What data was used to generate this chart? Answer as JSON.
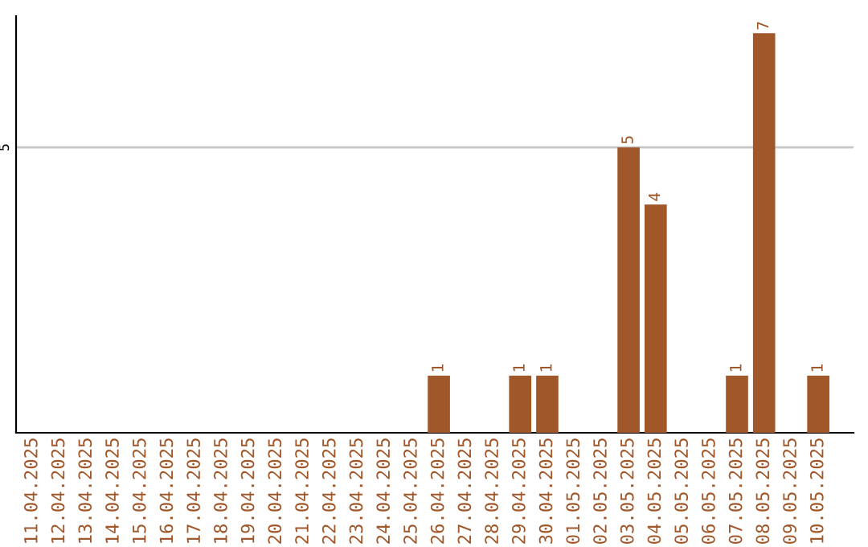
{
  "chart_data": {
    "type": "bar",
    "categories": [
      "11.04.2025",
      "12.04.2025",
      "13.04.2025",
      "14.04.2025",
      "15.04.2025",
      "16.04.2025",
      "17.04.2025",
      "18.04.2025",
      "19.04.2025",
      "20.04.2025",
      "21.04.2025",
      "22.04.2025",
      "23.04.2025",
      "24.04.2025",
      "25.04.2025",
      "26.04.2025",
      "27.04.2025",
      "28.04.2025",
      "29.04.2025",
      "30.04.2025",
      "01.05.2025",
      "02.05.2025",
      "03.05.2025",
      "04.05.2025",
      "05.05.2025",
      "06.05.2025",
      "07.05.2025",
      "08.05.2025",
      "09.05.2025",
      "10.05.2025"
    ],
    "values": [
      null,
      null,
      null,
      null,
      null,
      null,
      null,
      null,
      null,
      null,
      null,
      null,
      null,
      null,
      null,
      1,
      null,
      null,
      1,
      1,
      null,
      null,
      5,
      4,
      null,
      null,
      1,
      7,
      null,
      1
    ],
    "color": "#a0572a",
    "ylim": [
      0,
      7.3
    ],
    "yticks": [
      5
    ],
    "grid": "y",
    "data_labels": true,
    "legend": false
  }
}
